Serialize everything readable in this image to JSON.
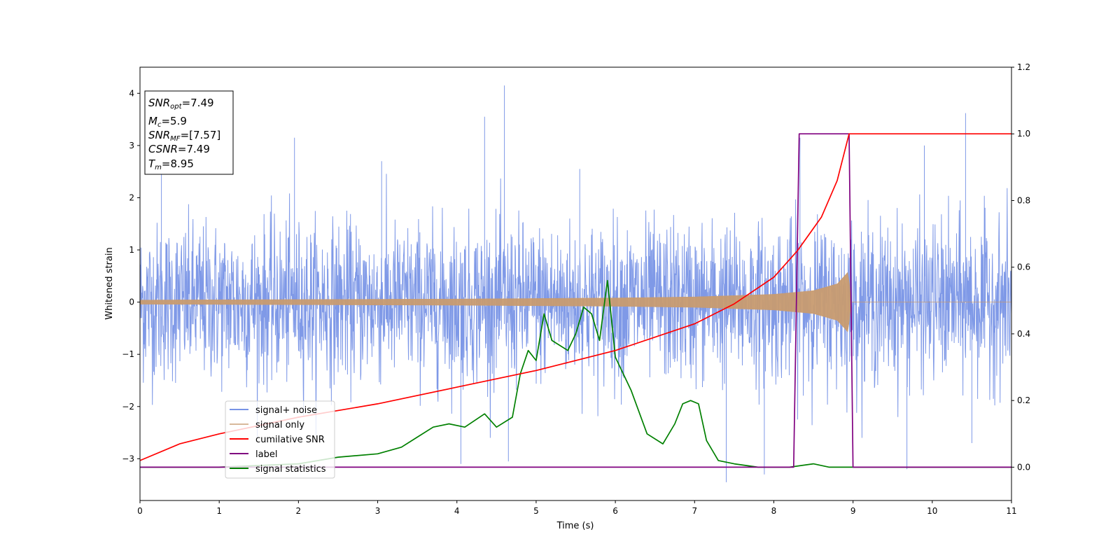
{
  "chart_data": {
    "type": "line",
    "xlabel": "Time (s)",
    "ylabel": "Whitened strain",
    "xlim": [
      0,
      11
    ],
    "ylim_left": [
      -3.8,
      4.5
    ],
    "ylim_right": [
      -0.1,
      1.2
    ],
    "x_ticks": [
      "0",
      "1",
      "2",
      "3",
      "4",
      "5",
      "6",
      "7",
      "8",
      "9",
      "10",
      "11"
    ],
    "y_left_ticks": [
      "−3",
      "−2",
      "−1",
      "0",
      "1",
      "2",
      "3",
      "4"
    ],
    "y_right_ticks": [
      "0.0",
      "0.2",
      "0.4",
      "0.6",
      "0.8",
      "1.0",
      "1.2"
    ],
    "grid": false,
    "legend_position": "lower-left",
    "annotation": {
      "snr_opt": {
        "base": "SNR",
        "sub": "opt",
        "value": "=7.49"
      },
      "mc": {
        "base": "M",
        "sub": "c",
        "value": "=5.9"
      },
      "snr_mf": {
        "base": "SNR",
        "sub": "MF",
        "value": "=[7.57]"
      },
      "csnr": {
        "base": "CSNR",
        "value": "=7.49"
      },
      "tm": {
        "base": "T",
        "sub": "m",
        "value": "=8.95"
      }
    },
    "series": [
      {
        "name": "signal+ noise",
        "axis": "left",
        "color": "#7893e6",
        "kind": "noise",
        "mean": 0.0,
        "std": 0.75,
        "peaks": [
          [
            0.27,
            2.6
          ],
          [
            1.95,
            3.15
          ],
          [
            3.05,
            2.7
          ],
          [
            4.05,
            -3.1
          ],
          [
            4.35,
            3.55
          ],
          [
            4.6,
            4.15
          ],
          [
            4.65,
            -3.05
          ],
          [
            5.55,
            2.55
          ],
          [
            7.4,
            -3.45
          ],
          [
            7.88,
            -3.3
          ],
          [
            8.33,
            3.15
          ],
          [
            9.68,
            -3.2
          ],
          [
            9.9,
            3.0
          ],
          [
            10.42,
            3.62
          ],
          [
            10.5,
            -2.7
          ]
        ]
      },
      {
        "name": "signal only",
        "axis": "left",
        "color": "#c89b70",
        "kind": "chirp",
        "x": [
          0,
          2,
          4,
          6,
          7,
          8,
          8.5,
          8.8,
          8.95,
          8.96,
          11
        ],
        "amplitude": [
          0.04,
          0.05,
          0.06,
          0.08,
          0.1,
          0.15,
          0.22,
          0.35,
          0.6,
          0.0,
          0.0
        ]
      },
      {
        "name": "cumilative SNR",
        "axis": "right",
        "color": "#ff0000",
        "x": [
          0,
          0.5,
          1,
          2,
          3,
          4,
          5,
          6,
          7,
          7.5,
          8,
          8.3,
          8.6,
          8.8,
          8.95,
          11
        ],
        "y": [
          0.02,
          0.07,
          0.1,
          0.15,
          0.19,
          0.24,
          0.29,
          0.35,
          0.43,
          0.49,
          0.57,
          0.65,
          0.75,
          0.86,
          1.0,
          1.0
        ]
      },
      {
        "name": "label",
        "axis": "right",
        "color": "#800080",
        "x": [
          0,
          8.25,
          8.32,
          8.95,
          9.0,
          11
        ],
        "y": [
          0,
          0,
          1,
          1,
          0,
          0
        ]
      },
      {
        "name": "signal statistics",
        "axis": "right",
        "color": "#008000",
        "x": [
          0,
          1,
          2,
          2.5,
          3,
          3.3,
          3.5,
          3.7,
          3.9,
          4.1,
          4.35,
          4.5,
          4.7,
          4.8,
          4.9,
          5.0,
          5.1,
          5.2,
          5.4,
          5.5,
          5.6,
          5.7,
          5.8,
          5.9,
          6.0,
          6.2,
          6.4,
          6.6,
          6.75,
          6.85,
          6.95,
          7.05,
          7.15,
          7.3,
          7.5,
          7.8,
          8.2,
          8.5,
          8.7,
          9.0,
          11
        ],
        "y": [
          0.0,
          0.0,
          0.01,
          0.03,
          0.04,
          0.06,
          0.09,
          0.12,
          0.13,
          0.12,
          0.16,
          0.12,
          0.15,
          0.28,
          0.35,
          0.32,
          0.46,
          0.38,
          0.35,
          0.4,
          0.48,
          0.46,
          0.38,
          0.56,
          0.33,
          0.23,
          0.1,
          0.07,
          0.13,
          0.19,
          0.2,
          0.19,
          0.08,
          0.02,
          0.01,
          0.0,
          0.0,
          0.01,
          0.0,
          0.0,
          0.0
        ]
      }
    ]
  }
}
